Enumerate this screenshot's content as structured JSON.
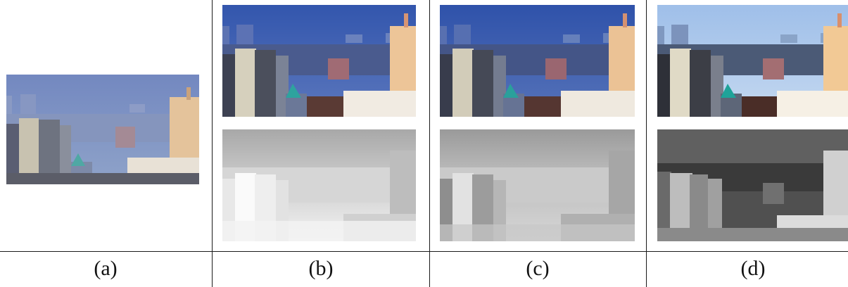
{
  "panels": [
    {
      "label": "(a)",
      "images": [
        "hazy-input-photo"
      ]
    },
    {
      "label": "(b)",
      "images": [
        "dehazed-photo",
        "transmission-map"
      ]
    },
    {
      "label": "(c)",
      "images": [
        "dehazed-photo",
        "transmission-map"
      ]
    },
    {
      "label": "(d)",
      "images": [
        "dehazed-photo",
        "depth-map"
      ]
    }
  ],
  "colors": {
    "divider": "#1a1a1a",
    "sky_hazy": "#7d93c2",
    "sky_b": "#3f63b5",
    "sky_c": "#3d5fb3",
    "sky_d": "#a9c6ec"
  }
}
